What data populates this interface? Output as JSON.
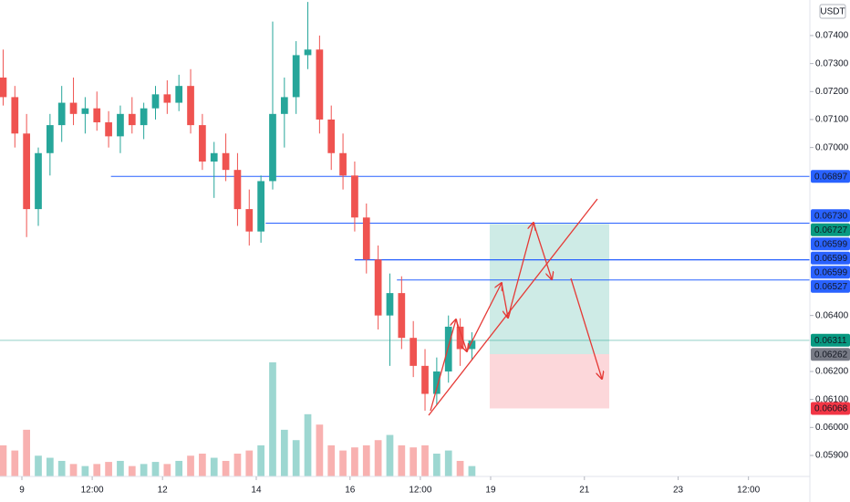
{
  "chart_data": {
    "type": "candlestick",
    "currency": "USDT",
    "up_color": "#26a69a",
    "down_color": "#ef5350",
    "xlim": [
      8.533,
      25.81
    ],
    "ylim": [
      0.05825,
      0.07527
    ],
    "xticks": [
      9,
      {
        "value": 10.5,
        "label": "12:00"
      },
      12,
      14,
      16,
      {
        "value": 17.5,
        "label": "12:00"
      },
      19,
      21,
      23,
      {
        "value": 24.5,
        "label": "12:00"
      }
    ],
    "yticks": [
      {
        "value": 0.074,
        "label": "0.07400"
      },
      {
        "value": 0.073,
        "label": "0.07300"
      },
      {
        "value": 0.072,
        "label": "0.07200"
      },
      {
        "value": 0.071,
        "label": "0.07100"
      },
      {
        "value": 0.07,
        "label": "0.07000"
      },
      {
        "value": 0.064,
        "label": "0.06400"
      },
      {
        "value": 0.062,
        "label": "0.06200"
      },
      {
        "value": 0.061,
        "label": "0.06100"
      },
      {
        "value": 0.06,
        "label": "0.06000"
      },
      {
        "value": 0.059,
        "label": "0.05900"
      }
    ],
    "x": [
      8.6,
      8.85,
      9.1,
      9.35,
      9.6,
      9.85,
      10.1,
      10.35,
      10.6,
      10.85,
      11.1,
      11.35,
      11.6,
      11.85,
      12.1,
      12.35,
      12.6,
      12.85,
      13.1,
      13.35,
      13.6,
      13.85,
      14.1,
      14.35,
      14.6,
      14.85,
      15.1,
      15.35,
      15.6,
      15.85,
      16.1,
      16.35,
      16.6,
      16.85,
      17.1,
      17.35,
      17.6,
      17.85,
      18.1,
      18.35,
      18.6
    ],
    "open": [
      0.0725,
      0.0718,
      0.0705,
      0.0678,
      0.0698,
      0.0708,
      0.0716,
      0.0712,
      0.0714,
      0.0709,
      0.0704,
      0.0712,
      0.0708,
      0.0714,
      0.0719,
      0.0716,
      0.0722,
      0.0708,
      0.0695,
      0.0698,
      0.0692,
      0.0678,
      0.067,
      0.0688,
      0.0712,
      0.0718,
      0.0733,
      0.0735,
      0.071,
      0.0698,
      0.069,
      0.0675,
      0.066,
      0.064,
      0.0648,
      0.0632,
      0.0622,
      0.0612,
      0.062,
      0.0636,
      0.0628
    ],
    "high": [
      0.0735,
      0.0722,
      0.0712,
      0.07,
      0.0712,
      0.0722,
      0.0725,
      0.0718,
      0.072,
      0.0713,
      0.0715,
      0.0718,
      0.0716,
      0.0722,
      0.0724,
      0.0726,
      0.0728,
      0.0712,
      0.0702,
      0.0705,
      0.0698,
      0.0685,
      0.069,
      0.0745,
      0.0725,
      0.0738,
      0.0752,
      0.074,
      0.0715,
      0.0705,
      0.0695,
      0.068,
      0.0665,
      0.0655,
      0.0654,
      0.0638,
      0.0628,
      0.0625,
      0.064,
      0.0639,
      0.0634
    ],
    "low": [
      0.0715,
      0.07,
      0.0668,
      0.0672,
      0.069,
      0.0702,
      0.0708,
      0.0705,
      0.0706,
      0.07,
      0.0698,
      0.0705,
      0.0703,
      0.071,
      0.0712,
      0.0713,
      0.0705,
      0.0692,
      0.0682,
      0.0688,
      0.0672,
      0.0665,
      0.0666,
      0.0685,
      0.07,
      0.0712,
      0.0728,
      0.0705,
      0.0692,
      0.0685,
      0.067,
      0.0655,
      0.0635,
      0.0622,
      0.0628,
      0.0618,
      0.0606,
      0.0608,
      0.0616,
      0.0622,
      0.0624
    ],
    "close": [
      0.0718,
      0.0705,
      0.0678,
      0.0698,
      0.0708,
      0.0716,
      0.0712,
      0.0714,
      0.0709,
      0.0704,
      0.0712,
      0.0708,
      0.0714,
      0.0719,
      0.0716,
      0.0722,
      0.0708,
      0.0695,
      0.0698,
      0.0692,
      0.0678,
      0.067,
      0.0688,
      0.0712,
      0.0718,
      0.0733,
      0.0735,
      0.071,
      0.0698,
      0.069,
      0.0675,
      0.066,
      0.064,
      0.0648,
      0.0632,
      0.0622,
      0.0612,
      0.062,
      0.0636,
      0.0628,
      0.0631
    ],
    "volume": [
      30,
      25,
      45,
      20,
      18,
      15,
      12,
      10,
      12,
      14,
      15,
      10,
      12,
      14,
      12,
      15,
      20,
      22,
      18,
      15,
      22,
      25,
      30,
      110,
      45,
      35,
      60,
      50,
      30,
      25,
      28,
      30,
      35,
      40,
      30,
      28,
      30,
      22,
      25,
      15,
      10
    ],
    "levels": [
      {
        "value": 0.06897,
        "label": "0.06897",
        "start": 10.9
      },
      {
        "value": 0.0673,
        "label": "0.06730",
        "start": 14.2
      },
      {
        "value": 0.06599,
        "label": "0.06599",
        "start": 16.1
      },
      {
        "value": 0.06599,
        "label": "0.06599",
        "start": 16.1
      },
      {
        "value": 0.06599,
        "label": "0.06599",
        "start": 16.1
      },
      {
        "value": 0.06527,
        "label": "0.06527",
        "start": 17.0
      }
    ],
    "level_color": "#2962ff",
    "position": {
      "start": 18.98,
      "end": 21.53,
      "target": {
        "value": 0.06727,
        "label": "0.06727",
        "color": "#089981"
      },
      "entry": {
        "value": 0.06262,
        "label": "0.06262",
        "color": "#787b86"
      },
      "stop": {
        "value": 0.06068,
        "label": "0.06068",
        "color": "#f23645"
      }
    },
    "last_price": {
      "value": 0.06311,
      "label": "0.06311",
      "color": "#089981"
    }
  }
}
